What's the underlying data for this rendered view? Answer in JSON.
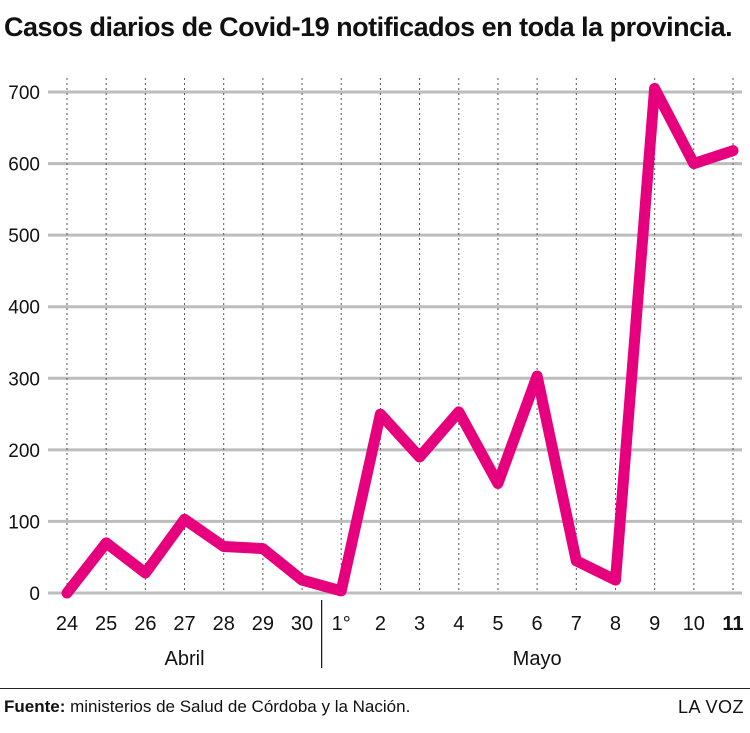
{
  "title": "Casos diarios de Covid-19 notificados en toda la provincia.",
  "source_label": "Fuente:",
  "source_text": " ministerios de Salud de Córdoba y la Nación.",
  "brand": "LA VOZ",
  "chart_data": {
    "type": "line",
    "title": "Casos diarios de Covid-19 notificados en toda la provincia.",
    "x": [
      "24",
      "25",
      "26",
      "27",
      "28",
      "29",
      "30",
      "1°",
      "2",
      "3",
      "4",
      "5",
      "6",
      "7",
      "8",
      "9",
      "10",
      "11"
    ],
    "x_groups": [
      {
        "label": "Abril",
        "from": "24",
        "to": "30"
      },
      {
        "label": "Mayo",
        "from": "1°",
        "to": "11"
      }
    ],
    "series": [
      {
        "values": [
          0,
          70,
          28,
          103,
          65,
          62,
          18,
          3,
          250,
          190,
          253,
          153,
          303,
          45,
          18,
          705,
          600,
          618
        ],
        "color": "#e6007e"
      }
    ],
    "ylim": [
      0,
      700
    ],
    "yticks": [
      0,
      100,
      200,
      300,
      400,
      500,
      600,
      700
    ],
    "xlabel": "",
    "ylabel": "",
    "bold_last_label": true,
    "grid": true
  }
}
